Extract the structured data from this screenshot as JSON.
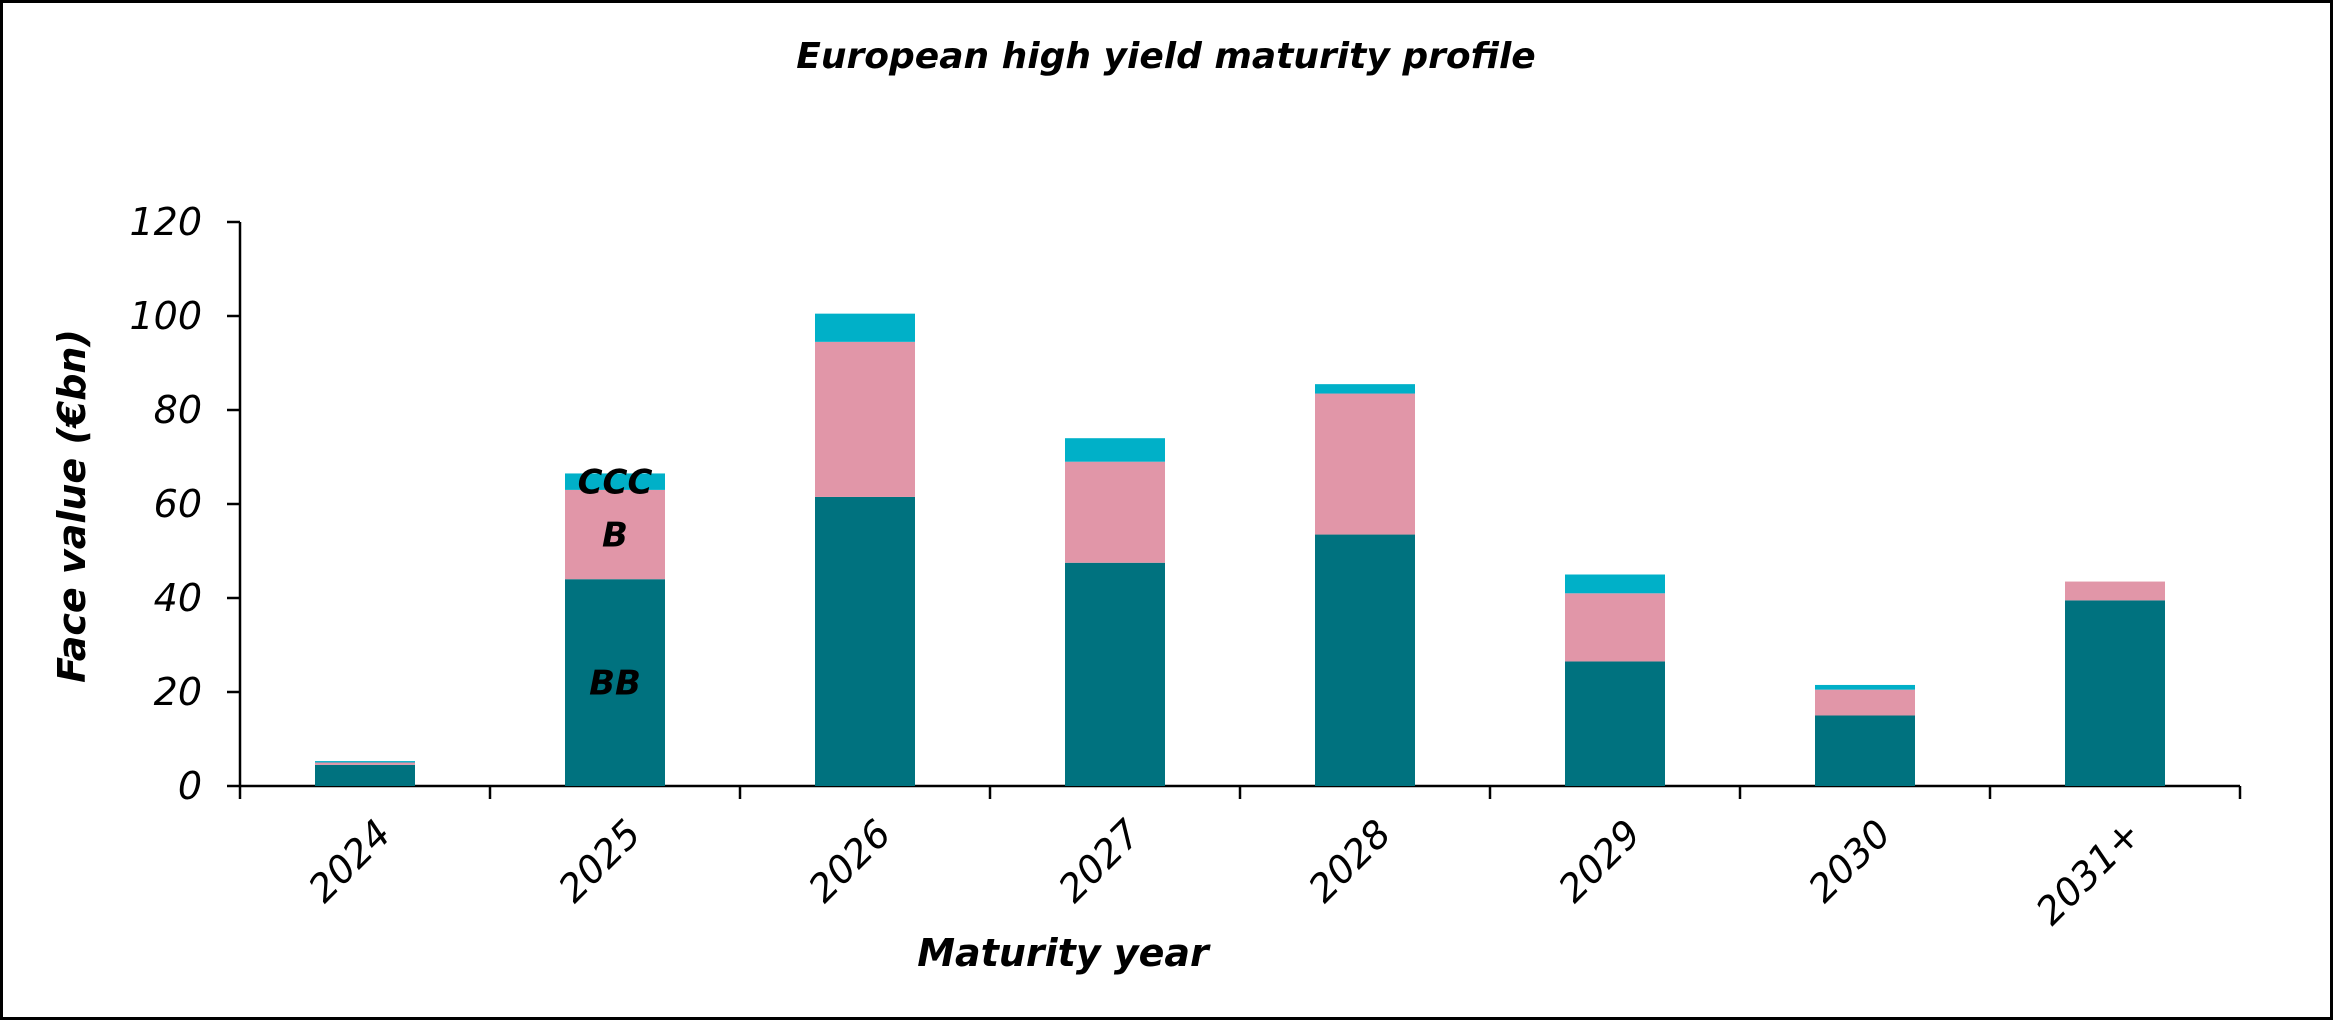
{
  "chart_data": {
    "type": "bar",
    "stacked": true,
    "title": "European high yield maturity profile",
    "xlabel": "Maturity year",
    "ylabel": "Face value (€bn)",
    "ylim": [
      0,
      120
    ],
    "yticks": [
      0,
      20,
      40,
      60,
      80,
      100,
      120
    ],
    "grid": false,
    "legend": "none",
    "categories": [
      "2024",
      "2025",
      "2026",
      "2027",
      "2028",
      "2029",
      "2030",
      "2031+"
    ],
    "series": [
      {
        "name": "BB",
        "color": "#00727F",
        "values": [
          4.5,
          44,
          61.5,
          47.5,
          53.5,
          26.5,
          15,
          39.5
        ]
      },
      {
        "name": "B",
        "color": "#E196A8",
        "values": [
          0.5,
          19,
          33,
          21.5,
          30,
          14.5,
          5.5,
          4
        ]
      },
      {
        "name": "CCC",
        "color": "#00B0C8",
        "values": [
          0.3,
          3.5,
          6,
          5,
          2,
          4,
          1,
          0
        ]
      }
    ],
    "series_label_category": "2025"
  }
}
